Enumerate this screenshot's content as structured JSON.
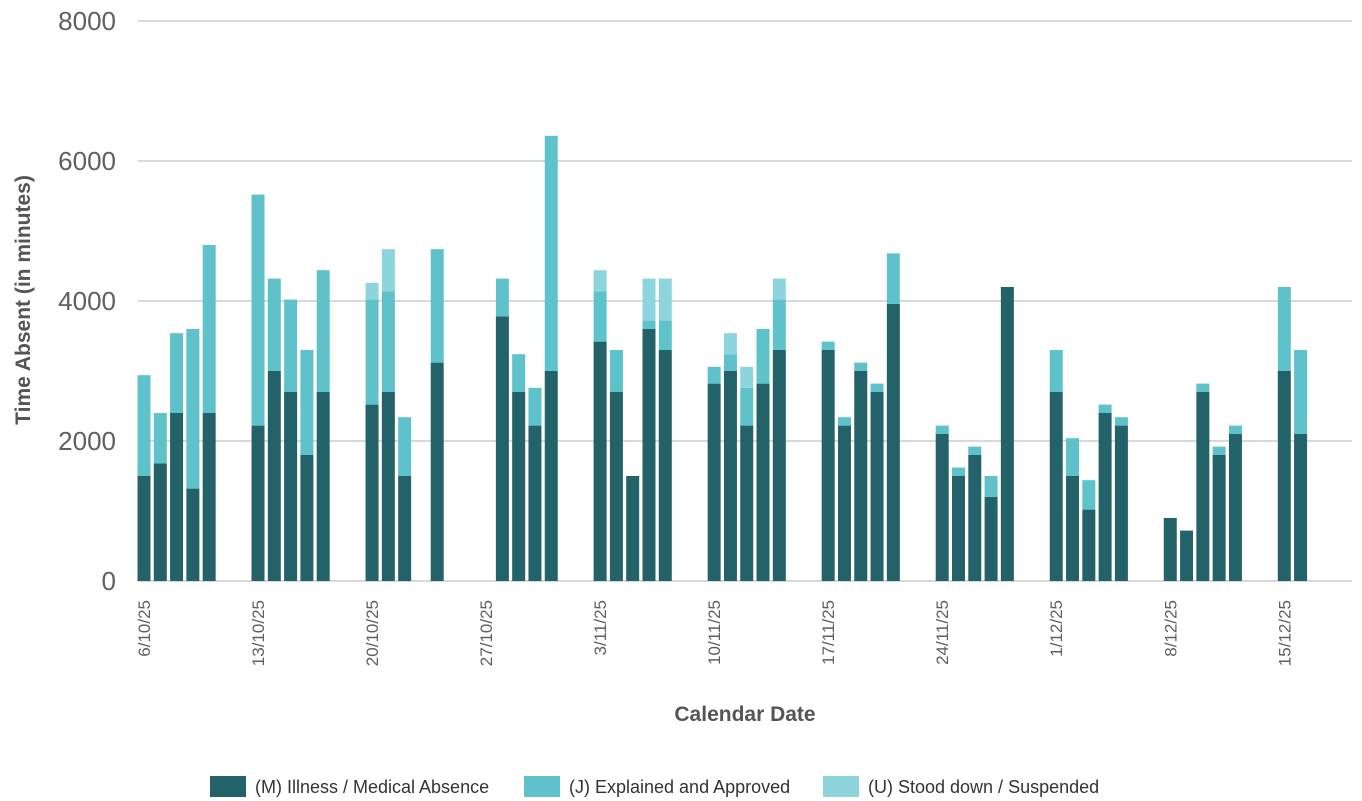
{
  "chart_data": {
    "type": "bar",
    "stacked": true,
    "xlabel": "Calendar Date",
    "ylabel": "Time Absent (in minutes)",
    "ylim": [
      0,
      8000
    ],
    "yticks": [
      0,
      2000,
      4000,
      6000,
      8000
    ],
    "grid": true,
    "legend_position": "bottom",
    "x": [
      "2025-10-06",
      "2025-10-07",
      "2025-10-08",
      "2025-10-09",
      "2025-10-10",
      "2025-10-13",
      "2025-10-14",
      "2025-10-15",
      "2025-10-16",
      "2025-10-17",
      "2025-10-20",
      "2025-10-21",
      "2025-10-22",
      "2025-10-24",
      "2025-10-28",
      "2025-10-29",
      "2025-10-30",
      "2025-10-31",
      "2025-11-03",
      "2025-11-04",
      "2025-11-05",
      "2025-11-06",
      "2025-11-07",
      "2025-11-10",
      "2025-11-11",
      "2025-11-12",
      "2025-11-13",
      "2025-11-14",
      "2025-11-17",
      "2025-11-18",
      "2025-11-19",
      "2025-11-20",
      "2025-11-21",
      "2025-11-24",
      "2025-11-25",
      "2025-11-26",
      "2025-11-27",
      "2025-11-28",
      "2025-12-01",
      "2025-12-02",
      "2025-12-03",
      "2025-12-04",
      "2025-12-05",
      "2025-12-08",
      "2025-12-09",
      "2025-12-10",
      "2025-12-11",
      "2025-12-12",
      "2025-12-15",
      "2025-12-16"
    ],
    "xtick_dates": [
      "2025-10-06",
      "2025-10-13",
      "2025-10-20",
      "2025-10-27",
      "2025-11-03",
      "2025-11-10",
      "2025-11-17",
      "2025-11-24",
      "2025-12-01",
      "2025-12-08",
      "2025-12-15"
    ],
    "xtick_labels": [
      "6/10/25",
      "13/10/25",
      "20/10/25",
      "27/10/25",
      "3/11/25",
      "10/11/25",
      "17/11/25",
      "24/11/25",
      "1/12/25",
      "8/12/25",
      "15/12/25"
    ],
    "series": [
      {
        "name": "(M) Illness / Medical Absence",
        "color": "#236269",
        "values": [
          1500,
          1680,
          2400,
          1320,
          2400,
          2220,
          3000,
          2700,
          1800,
          2700,
          2520,
          2700,
          1500,
          3120,
          3780,
          2700,
          2220,
          3000,
          3420,
          2700,
          1500,
          3600,
          3300,
          2820,
          3000,
          2220,
          2820,
          3300,
          3300,
          2220,
          3000,
          2700,
          3960,
          2100,
          1500,
          1800,
          1200,
          4200,
          2700,
          1500,
          1020,
          2400,
          2220,
          900,
          720,
          2700,
          1800,
          2100,
          3000,
          2100
        ]
      },
      {
        "name": "(J) Explained and Approved",
        "color": "#5fc2cb",
        "values": [
          1440,
          720,
          1140,
          2280,
          2400,
          3300,
          1320,
          1320,
          1500,
          1740,
          1500,
          1440,
          840,
          1620,
          540,
          540,
          540,
          3360,
          720,
          600,
          0,
          120,
          420,
          240,
          240,
          540,
          780,
          720,
          120,
          120,
          120,
          120,
          720,
          120,
          120,
          120,
          300,
          0,
          600,
          540,
          420,
          120,
          120,
          0,
          0,
          120,
          120,
          120,
          1200,
          1200
        ]
      },
      {
        "name": "(U) Stood down / Suspended",
        "color": "#8dd4dc",
        "values": [
          0,
          0,
          0,
          0,
          0,
          0,
          0,
          0,
          0,
          0,
          240,
          600,
          0,
          0,
          0,
          0,
          0,
          0,
          300,
          0,
          0,
          600,
          600,
          0,
          300,
          300,
          0,
          300,
          0,
          0,
          0,
          0,
          0,
          0,
          0,
          0,
          0,
          0,
          0,
          0,
          0,
          0,
          0,
          0,
          0,
          0,
          0,
          0,
          0,
          0
        ]
      }
    ]
  }
}
